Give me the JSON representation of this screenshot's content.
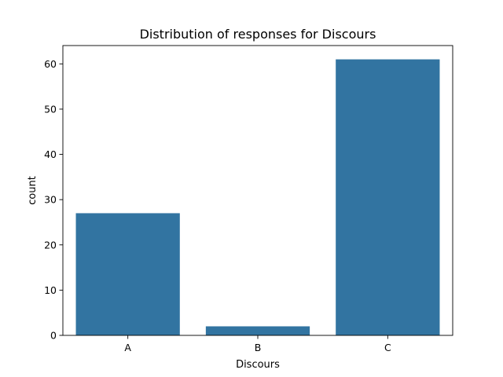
{
  "chart_data": {
    "type": "bar",
    "title": "Distribution of responses for Discours",
    "xlabel": "Discours",
    "ylabel": "count",
    "categories": [
      "A",
      "B",
      "C"
    ],
    "values": [
      27,
      2,
      61
    ],
    "ylim": [
      0,
      64.05
    ],
    "yticks": [
      0,
      10,
      20,
      30,
      40,
      50,
      60
    ],
    "bar_color": "#3274a1",
    "grid": false,
    "legend": "none"
  }
}
